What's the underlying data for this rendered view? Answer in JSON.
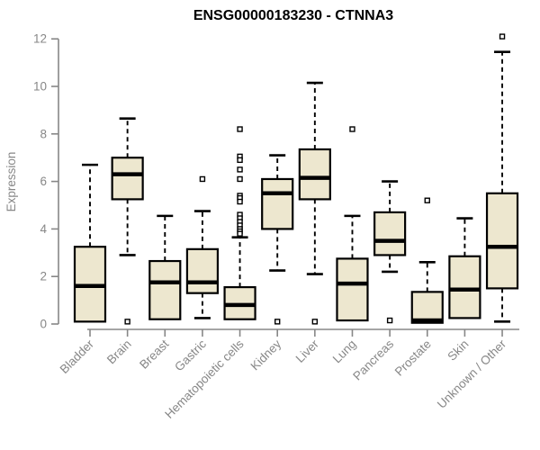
{
  "title": "ENSG00000183230 - CTNNA3",
  "chart_data": {
    "type": "boxplot",
    "title": "ENSG00000183230 - CTNNA3",
    "xlabel": "",
    "ylabel": "Expression",
    "ylim": [
      0,
      12
    ],
    "yticks": [
      0,
      2,
      4,
      6,
      8,
      10,
      12
    ],
    "grid": false,
    "legend": "none",
    "colors": {
      "box_fill": "#EDE7CF",
      "box_stroke": "#000000",
      "median": "#000000",
      "whisker": "#000000",
      "outlier_fill": "#ffffff",
      "outlier_stroke": "#000000",
      "axis": "#878787",
      "title": "#000000",
      "background": "#ffffff"
    },
    "categories": [
      "Bladder",
      "Brain",
      "Breast",
      "Gastric",
      "Hematopoietic cells",
      "Kidney",
      "Liver",
      "Lung",
      "Pancreas",
      "Prostate",
      "Skin",
      "Unknown / Other"
    ],
    "series": [
      {
        "name": "Bladder",
        "whisker_low": 0.1,
        "q1": 0.1,
        "median": 1.6,
        "q3": 3.25,
        "whisker_high": 6.7,
        "outliers": []
      },
      {
        "name": "Brain",
        "whisker_low": 2.9,
        "q1": 5.25,
        "median": 6.3,
        "q3": 7.0,
        "whisker_high": 8.65,
        "outliers": [
          0.1
        ]
      },
      {
        "name": "Breast",
        "whisker_low": 0.2,
        "q1": 0.2,
        "median": 1.75,
        "q3": 2.65,
        "whisker_high": 4.55,
        "outliers": []
      },
      {
        "name": "Gastric",
        "whisker_low": 0.25,
        "q1": 1.3,
        "median": 1.75,
        "q3": 3.15,
        "whisker_high": 4.75,
        "outliers": [
          6.1
        ]
      },
      {
        "name": "Hematopoietic cells",
        "whisker_low": 0.2,
        "q1": 0.2,
        "median": 0.8,
        "q3": 1.55,
        "whisker_high": 3.65,
        "outliers": [
          8.2,
          7.05,
          6.9,
          6.5,
          6.1,
          5.4,
          5.3,
          5.15,
          4.6,
          4.45,
          4.3,
          4.15,
          4.0,
          3.9,
          3.8
        ]
      },
      {
        "name": "Kidney",
        "whisker_low": 2.25,
        "q1": 4.0,
        "median": 5.5,
        "q3": 6.1,
        "whisker_high": 7.1,
        "outliers": [
          0.1
        ]
      },
      {
        "name": "Liver",
        "whisker_low": 2.1,
        "q1": 5.25,
        "median": 6.15,
        "q3": 7.35,
        "whisker_high": 10.15,
        "outliers": [
          0.1
        ]
      },
      {
        "name": "Lung",
        "whisker_low": 0.15,
        "q1": 0.15,
        "median": 1.7,
        "q3": 2.75,
        "whisker_high": 4.55,
        "outliers": [
          8.2
        ]
      },
      {
        "name": "Pancreas",
        "whisker_low": 2.2,
        "q1": 2.9,
        "median": 3.5,
        "q3": 4.7,
        "whisker_high": 6.0,
        "outliers": [
          0.15
        ]
      },
      {
        "name": "Prostate",
        "whisker_low": 0.05,
        "q1": 0.05,
        "median": 0.15,
        "q3": 1.35,
        "whisker_high": 2.6,
        "outliers": [
          5.2
        ]
      },
      {
        "name": "Skin",
        "whisker_low": 0.25,
        "q1": 0.25,
        "median": 1.45,
        "q3": 2.85,
        "whisker_high": 4.45,
        "outliers": []
      },
      {
        "name": "Unknown / Other",
        "whisker_low": 0.1,
        "q1": 1.5,
        "median": 3.25,
        "q3": 5.5,
        "whisker_high": 11.45,
        "outliers": [
          12.1
        ]
      }
    ]
  }
}
